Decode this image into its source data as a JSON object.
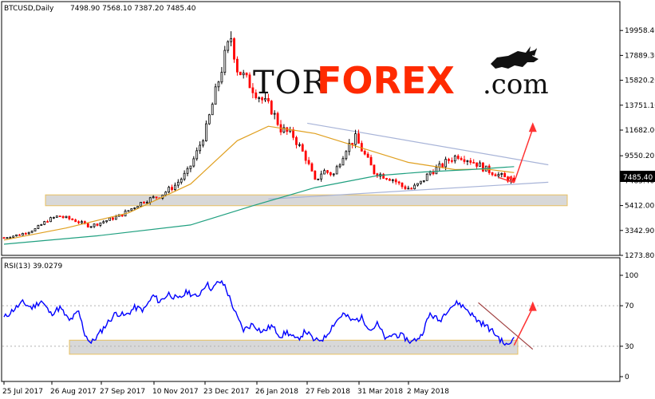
{
  "header": {
    "symbol": "BTCUSD,Daily",
    "ohlc": "7498.90 7568.10 7387.20 7485.40",
    "rsi_label": "RSI(13) 39.0279"
  },
  "logo": {
    "part1": "TOR",
    "part2": "FOREX",
    "part3": ".com",
    "bull_icon": "bull-icon"
  },
  "colors": {
    "bull_candle": "#000000",
    "bear_candle": "#ff0000",
    "ma_fast": "#e0a020",
    "ma_slow": "#20a080",
    "rsi_line": "#0000ff",
    "arrow": "#ff3333",
    "trend": "#a8b4d8",
    "zone_fill": "#d8d8d8",
    "zone_border": "#e8c060"
  },
  "price_axis": {
    "labels": [
      "19958.40",
      "17889.30",
      "15820.20",
      "13751.10",
      "11682.00",
      "9550.20",
      "7485.40",
      "5412.00",
      "3342.90",
      "1273.80"
    ],
    "current_price": "7485.40"
  },
  "rsi_axis": {
    "labels": [
      "100",
      "70",
      "30",
      "0"
    ]
  },
  "x_axis": {
    "labels": [
      "25 Jul 2017",
      "26 Aug 2017",
      "27 Sep 2017",
      "10 Nov 2017",
      "23 Dec 2017",
      "26 Jan 2018",
      "27 Feb 2018",
      "31 Mar 2018",
      "2 May 2018"
    ]
  },
  "chart_data": [
    {
      "type": "candlestick",
      "title": "BTCUSD,Daily",
      "ylim": [
        1273.8,
        20900
      ],
      "y_ticks": [
        19958.4,
        17889.3,
        15820.2,
        13751.1,
        11682.0,
        9550.2,
        7485.4,
        5412.0,
        3342.9,
        1273.8
      ],
      "x_tick_labels": [
        "25 Jul 2017",
        "26 Aug 2017",
        "27 Sep 2017",
        "10 Nov 2017",
        "23 Dec 2017",
        "26 Jan 2018",
        "27 Feb 2018",
        "31 Mar 2018",
        "2 May 2018"
      ],
      "last_bar": {
        "open": 7498.9,
        "high": 7568.1,
        "low": 7387.2,
        "close": 7485.4
      },
      "close_path": [
        [
          0,
          2750
        ],
        [
          10,
          3000
        ],
        [
          20,
          3450
        ],
        [
          28,
          4200
        ],
        [
          35,
          4550
        ],
        [
          45,
          4200
        ],
        [
          55,
          3700
        ],
        [
          60,
          3900
        ],
        [
          75,
          4600
        ],
        [
          90,
          5800
        ],
        [
          100,
          6200
        ],
        [
          110,
          7100
        ],
        [
          118,
          8200
        ],
        [
          124,
          9800
        ],
        [
          130,
          11800
        ],
        [
          136,
          14800
        ],
        [
          142,
          17800
        ],
        [
          146,
          19400
        ],
        [
          150,
          16800
        ],
        [
          158,
          15500
        ],
        [
          166,
          14200
        ],
        [
          172,
          13400
        ],
        [
          178,
          11800
        ],
        [
          186,
          11200
        ],
        [
          194,
          9400
        ],
        [
          200,
          7400
        ],
        [
          205,
          8300
        ],
        [
          212,
          8000
        ],
        [
          220,
          10200
        ],
        [
          226,
          11000
        ],
        [
          232,
          9600
        ],
        [
          238,
          8200
        ],
        [
          244,
          7900
        ],
        [
          250,
          7600
        ],
        [
          256,
          7000
        ],
        [
          262,
          6800
        ],
        [
          268,
          7300
        ],
        [
          274,
          8200
        ],
        [
          280,
          8600
        ],
        [
          286,
          9200
        ],
        [
          292,
          9600
        ],
        [
          298,
          9300
        ],
        [
          304,
          8900
        ],
        [
          310,
          8400
        ],
        [
          316,
          8100
        ],
        [
          322,
          7700
        ],
        [
          328,
          7490
        ]
      ],
      "series": [
        {
          "name": "MA fast",
          "values": [
            [
              0,
              2550
            ],
            [
              40,
              3550
            ],
            [
              80,
              4800
            ],
            [
              120,
              7200
            ],
            [
              150,
              10800
            ],
            [
              170,
              12000
            ],
            [
              200,
              11400
            ],
            [
              230,
              10200
            ],
            [
              260,
              9000
            ],
            [
              290,
              8400
            ],
            [
              310,
              8450
            ],
            [
              328,
              8150
            ]
          ]
        },
        {
          "name": "MA slow",
          "values": [
            [
              0,
              2200
            ],
            [
              60,
              2900
            ],
            [
              120,
              3800
            ],
            [
              160,
              5400
            ],
            [
              200,
              6900
            ],
            [
              240,
              7900
            ],
            [
              270,
              8200
            ],
            [
              300,
              8400
            ],
            [
              328,
              8650
            ]
          ]
        }
      ],
      "support_zone": [
        5400,
        6300
      ],
      "trend_upper": [
        [
          195,
          12250
        ],
        [
          350,
          8800
        ]
      ],
      "trend_lower": [
        [
          170,
          5950
        ],
        [
          350,
          7350
        ]
      ],
      "projection": {
        "from": [
          328,
          7320
        ],
        "down": [
          318,
          7750
        ],
        "up": [
          340,
          11800
        ]
      }
    },
    {
      "type": "line",
      "title": "RSI(13) 39.0279",
      "ylim": [
        0,
        100
      ],
      "y_ticks": [
        100,
        70,
        30,
        0
      ],
      "series": [
        {
          "name": "RSI(13)",
          "values": [
            [
              0,
              58
            ],
            [
              6,
              66
            ],
            [
              12,
              73
            ],
            [
              18,
              68
            ],
            [
              24,
              75
            ],
            [
              30,
              62
            ],
            [
              36,
              68
            ],
            [
              42,
              55
            ],
            [
              48,
              64
            ],
            [
              52,
              42
            ],
            [
              56,
              33
            ],
            [
              60,
              40
            ],
            [
              66,
              52
            ],
            [
              72,
              63
            ],
            [
              78,
              60
            ],
            [
              84,
              68
            ],
            [
              90,
              66
            ],
            [
              96,
              80
            ],
            [
              100,
              74
            ],
            [
              106,
              82
            ],
            [
              112,
              76
            ],
            [
              118,
              84
            ],
            [
              124,
              78
            ],
            [
              130,
              92
            ],
            [
              134,
              86
            ],
            [
              138,
              94
            ],
            [
              142,
              90
            ],
            [
              146,
              74
            ],
            [
              150,
              58
            ],
            [
              154,
              46
            ],
            [
              160,
              52
            ],
            [
              166,
              44
            ],
            [
              172,
              50
            ],
            [
              178,
              40
            ],
            [
              182,
              44
            ],
            [
              188,
              36
            ],
            [
              194,
              45
            ],
            [
              200,
              35
            ],
            [
              206,
              38
            ],
            [
              212,
              52
            ],
            [
              218,
              62
            ],
            [
              224,
              55
            ],
            [
              230,
              58
            ],
            [
              236,
              46
            ],
            [
              240,
              52
            ],
            [
              246,
              36
            ],
            [
              250,
              42
            ],
            [
              256,
              40
            ],
            [
              262,
              34
            ],
            [
              268,
              40
            ],
            [
              274,
              62
            ],
            [
              280,
              55
            ],
            [
              286,
              68
            ],
            [
              292,
              73
            ],
            [
              298,
              66
            ],
            [
              304,
              56
            ],
            [
              310,
              50
            ],
            [
              316,
              42
            ],
            [
              320,
              35
            ],
            [
              324,
              30
            ],
            [
              328,
              39
            ]
          ]
        }
      ],
      "zone": [
        30,
        36
      ],
      "downtrend": [
        [
          305,
          73
        ],
        [
          340,
          27
        ]
      ],
      "arrow": {
        "from": [
          328,
          31
        ],
        "to": [
          340,
          68
        ]
      }
    }
  ]
}
